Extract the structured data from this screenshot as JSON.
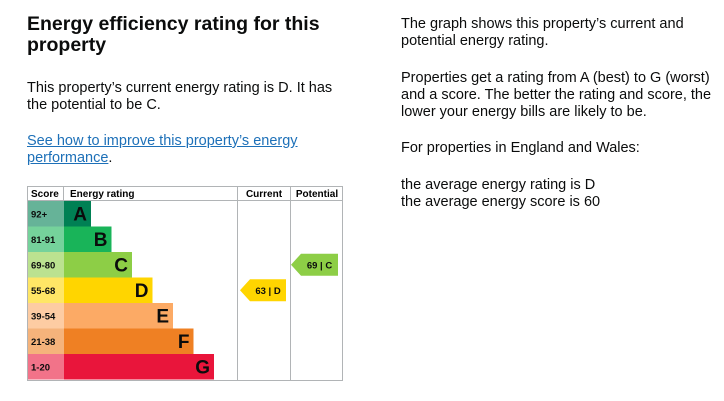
{
  "heading": "Energy efficiency rating for this property",
  "current_text": "This property’s current energy rating is D. It has the potential to be C.",
  "improve_link": "See how to improve this property’s energy performance",
  "improve_link_after": ".",
  "side": {
    "p1": "The graph shows this property’s current and potential energy rating.",
    "p2": "Properties get a rating from A (best) to G (worst) and a score. The better the rating and score, the lower your energy bills are likely to be.",
    "p3": "For properties in England and Wales:",
    "p4_line1": "the average energy rating is D",
    "p4_line2": "the average energy score is 60"
  },
  "chart": {
    "headers": {
      "score": "Score",
      "rating": "Energy rating",
      "current": "Current",
      "potential": "Potential"
    },
    "bands": [
      {
        "score": "92+",
        "letter": "A",
        "color": "#008054"
      },
      {
        "score": "81-91",
        "letter": "B",
        "color": "#19b459"
      },
      {
        "score": "69-80",
        "letter": "C",
        "color": "#8dce46"
      },
      {
        "score": "55-68",
        "letter": "D",
        "color": "#ffd500"
      },
      {
        "score": "39-54",
        "letter": "E",
        "color": "#fcaa65"
      },
      {
        "score": "21-38",
        "letter": "F",
        "color": "#ef8023"
      },
      {
        "score": "1-20",
        "letter": "G",
        "color": "#e9153b"
      }
    ],
    "current": {
      "label": "63 | D",
      "band": "D",
      "color": "#ffd500"
    },
    "potential": {
      "label": "69 | C",
      "band": "C",
      "color": "#8dce46"
    }
  }
}
